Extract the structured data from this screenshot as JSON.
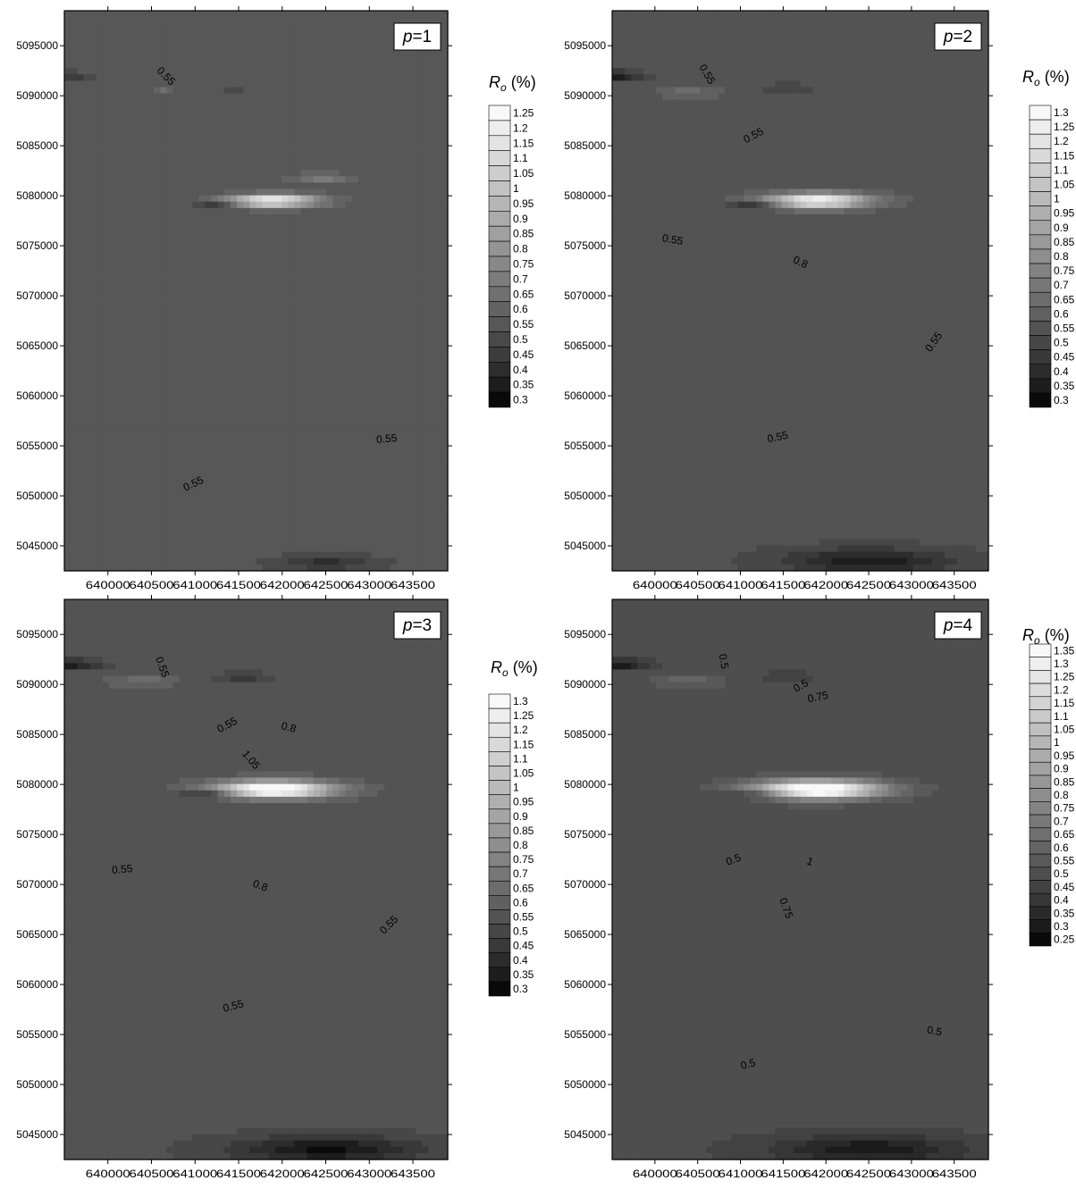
{
  "figure": {
    "legend_title": "Ro (%)",
    "legend_title_main": "R",
    "legend_title_sub": "o",
    "legend_title_rest": " (%)"
  },
  "chart_data": [
    {
      "type": "heatmap",
      "panel_label": "p=1",
      "panel_label_var": "p",
      "panel_label_rest": "=1",
      "x_ticks": [
        "640000",
        "640500",
        "641000",
        "641500",
        "642000",
        "642500",
        "643000",
        "643500"
      ],
      "y_ticks": [
        "5095000",
        "5090000",
        "5085000",
        "5080000",
        "5075000",
        "5070000",
        "5065000",
        "5060000",
        "5055000",
        "5050000",
        "5045000"
      ],
      "x_range": [
        639500,
        643900
      ],
      "y_range": [
        5042500,
        5098500
      ],
      "base_value": 0.55,
      "contour_labels": [
        "0.55",
        "0.55",
        "0.55"
      ],
      "colorbar_levels": [
        "1.25",
        "1.2",
        "1.15",
        "1.1",
        "1.05",
        "1",
        "0.95",
        "0.9",
        "0.85",
        "0.8",
        "0.75",
        "0.7",
        "0.65",
        "0.6",
        "0.55",
        "0.5",
        "0.45",
        "0.4",
        "0.35",
        "0.3"
      ],
      "anomalies": [
        {
          "x": 641900,
          "y": 5079500,
          "peak": 1.25,
          "extent": 480
        },
        {
          "x": 642450,
          "y": 5081800,
          "peak": 0.72,
          "extent": 300
        },
        {
          "x": 641250,
          "y": 5079000,
          "peak": 0.38,
          "extent": 260
        },
        {
          "x": 639530,
          "y": 5092000,
          "peak": 0.4,
          "extent": 330
        },
        {
          "x": 641460,
          "y": 5090800,
          "peak": 0.45,
          "extent": 220
        },
        {
          "x": 642500,
          "y": 5043300,
          "peak": 0.42,
          "extent": 520
        },
        {
          "x": 640650,
          "y": 5090600,
          "peak": 0.65,
          "extent": 90
        }
      ]
    },
    {
      "type": "heatmap",
      "panel_label": "p=2",
      "panel_label_var": "p",
      "panel_label_rest": "=2",
      "x_ticks": [
        "640000",
        "640500",
        "641000",
        "641500",
        "642000",
        "642500",
        "643000",
        "643500"
      ],
      "y_ticks": [
        "5095000",
        "5090000",
        "5085000",
        "5080000",
        "5075000",
        "5070000",
        "5065000",
        "5060000",
        "5055000",
        "5050000",
        "5045000"
      ],
      "x_range": [
        639500,
        643900
      ],
      "y_range": [
        5042500,
        5098500
      ],
      "base_value": 0.55,
      "contour_labels": [
        "0.55",
        "0.55",
        "0.55",
        "0.8",
        "0.55",
        "0.55"
      ],
      "colorbar_levels": [
        "1.3",
        "1.25",
        "1.2",
        "1.15",
        "1.1",
        "1.05",
        "1",
        "0.95",
        "0.9",
        "0.85",
        "0.8",
        "0.75",
        "0.7",
        "0.65",
        "0.6",
        "0.55",
        "0.5",
        "0.45",
        "0.4",
        "0.35",
        "0.3"
      ],
      "anomalies": [
        {
          "x": 641900,
          "y": 5079500,
          "peak": 1.3,
          "extent": 580
        },
        {
          "x": 641200,
          "y": 5079000,
          "peak": 0.35,
          "extent": 330
        },
        {
          "x": 639500,
          "y": 5092000,
          "peak": 0.32,
          "extent": 400
        },
        {
          "x": 640400,
          "y": 5090300,
          "peak": 0.68,
          "extent": 300
        },
        {
          "x": 641550,
          "y": 5090800,
          "peak": 0.42,
          "extent": 300
        },
        {
          "x": 642500,
          "y": 5043500,
          "peak": 0.35,
          "extent": 950
        }
      ]
    },
    {
      "type": "heatmap",
      "panel_label": "p=3",
      "panel_label_var": "p",
      "panel_label_rest": "=3",
      "x_ticks": [
        "640000",
        "640500",
        "641000",
        "641500",
        "642000",
        "642500",
        "643000",
        "643500"
      ],
      "y_ticks": [
        "5095000",
        "5090000",
        "5085000",
        "5080000",
        "5075000",
        "5070000",
        "5065000",
        "5060000",
        "5055000",
        "5050000",
        "5045000"
      ],
      "x_range": [
        639500,
        643900
      ],
      "y_range": [
        5042500,
        5098500
      ],
      "base_value": 0.55,
      "contour_labels": [
        "0.55",
        "0.55",
        "0.8",
        "1.05",
        "0.55",
        "0.8",
        "0.55",
        "0.55"
      ],
      "colorbar_levels": [
        "1.3",
        "1.25",
        "1.2",
        "1.15",
        "1.1",
        "1.05",
        "1",
        "0.95",
        "0.9",
        "0.85",
        "0.8",
        "0.75",
        "0.7",
        "0.65",
        "0.6",
        "0.55",
        "0.5",
        "0.45",
        "0.4",
        "0.35",
        "0.3"
      ],
      "anomalies": [
        {
          "x": 641900,
          "y": 5079500,
          "peak": 1.45,
          "extent": 650
        },
        {
          "x": 641200,
          "y": 5079000,
          "peak": 0.32,
          "extent": 360
        },
        {
          "x": 639500,
          "y": 5092000,
          "peak": 0.3,
          "extent": 430
        },
        {
          "x": 640400,
          "y": 5090300,
          "peak": 0.68,
          "extent": 320
        },
        {
          "x": 641550,
          "y": 5090800,
          "peak": 0.4,
          "extent": 330
        },
        {
          "x": 642500,
          "y": 5043500,
          "peak": 0.33,
          "extent": 1050
        }
      ]
    },
    {
      "type": "heatmap",
      "panel_label": "p=4",
      "panel_label_var": "p",
      "panel_label_rest": "=4",
      "x_ticks": [
        "640000",
        "640500",
        "641000",
        "641500",
        "642000",
        "642500",
        "643000",
        "643500"
      ],
      "y_ticks": [
        "5095000",
        "5090000",
        "5085000",
        "5080000",
        "5075000",
        "5070000",
        "5065000",
        "5060000",
        "5055000",
        "5050000",
        "5045000"
      ],
      "x_range": [
        639500,
        643900
      ],
      "y_range": [
        5042500,
        5098500
      ],
      "base_value": 0.5,
      "contour_labels": [
        "0.5",
        "0.5",
        "0.75",
        "0.5",
        "1",
        "0.75",
        "0.5",
        "0.5"
      ],
      "colorbar_levels": [
        "1.35",
        "1.3",
        "1.25",
        "1.2",
        "1.15",
        "1.1",
        "1.05",
        "1",
        "0.95",
        "0.9",
        "0.85",
        "0.8",
        "0.75",
        "0.7",
        "0.65",
        "0.6",
        "0.55",
        "0.5",
        "0.45",
        "0.4",
        "0.35",
        "0.3",
        "0.25"
      ],
      "anomalies": [
        {
          "x": 641900,
          "y": 5079500,
          "peak": 1.55,
          "extent": 700
        },
        {
          "x": 641200,
          "y": 5079000,
          "peak": 0.28,
          "extent": 380
        },
        {
          "x": 639500,
          "y": 5092000,
          "peak": 0.25,
          "extent": 450
        },
        {
          "x": 640400,
          "y": 5090300,
          "peak": 0.65,
          "extent": 330
        },
        {
          "x": 641550,
          "y": 5090800,
          "peak": 0.38,
          "extent": 340
        },
        {
          "x": 642500,
          "y": 5043500,
          "peak": 0.3,
          "extent": 1100
        }
      ]
    }
  ]
}
